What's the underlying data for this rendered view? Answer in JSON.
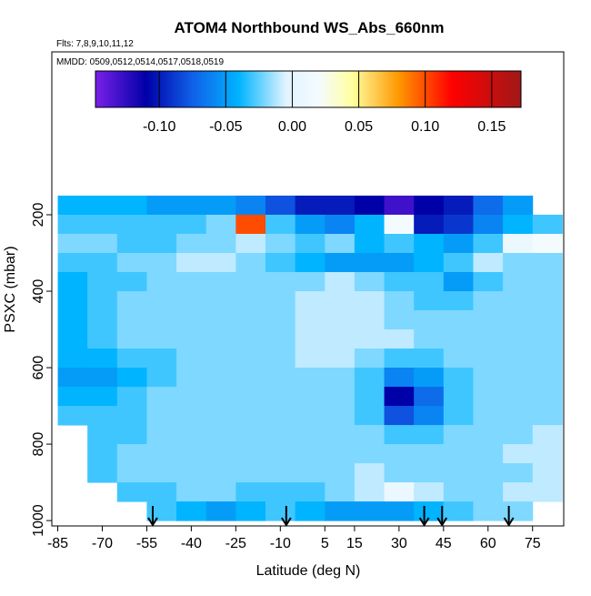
{
  "chart_data": {
    "type": "heatmap",
    "title": "ATOM4 Northbound WS_Abs_660nm",
    "subtitle": "Flts: 7,8,9,10,11,12",
    "annotation": "MMDD: 0509,0512,0514,0517,0518,0519",
    "x_label": "Latitude (deg N)",
    "y_label": "PSXC (mbar)",
    "xlim": [
      -87,
      85.5
    ],
    "ylim": [
      1014,
      -226
    ],
    "xticks": [
      -85,
      -70,
      -55,
      -40,
      -25,
      -10,
      5,
      15,
      30,
      45,
      60,
      75
    ],
    "yticks": [
      200,
      400,
      600,
      800,
      1000
    ],
    "x_edges": [
      -85,
      -75,
      -65,
      -55,
      -45,
      -35,
      -25,
      -15,
      -5,
      5,
      15,
      25,
      35,
      45,
      55,
      65,
      75,
      85
    ],
    "y_edges": [
      150,
      200,
      250,
      300,
      350,
      400,
      450,
      500,
      550,
      600,
      650,
      700,
      750,
      800,
      850,
      900,
      950,
      1000
    ],
    "values": [
      [
        -0.04,
        -0.04,
        -0.04,
        -0.05,
        -0.05,
        -0.05,
        -0.06,
        -0.08,
        -0.1,
        -0.1,
        -0.11,
        -0.13,
        -0.11,
        -0.1,
        -0.07,
        -0.05,
        null
      ],
      [
        -0.03,
        -0.03,
        -0.03,
        -0.03,
        -0.03,
        -0.02,
        0.1,
        -0.03,
        -0.05,
        -0.06,
        -0.04,
        0.02,
        -0.1,
        -0.09,
        -0.06,
        -0.04,
        -0.03
      ],
      [
        -0.02,
        -0.02,
        -0.03,
        -0.03,
        -0.02,
        -0.02,
        -0.01,
        -0.02,
        -0.03,
        -0.02,
        -0.04,
        -0.03,
        -0.04,
        -0.05,
        -0.03,
        0.01,
        0.02
      ],
      [
        -0.03,
        -0.03,
        -0.02,
        -0.02,
        -0.01,
        -0.01,
        -0.02,
        -0.03,
        -0.04,
        -0.05,
        -0.05,
        -0.05,
        -0.04,
        -0.03,
        -0.01,
        -0.02,
        -0.02
      ],
      [
        -0.04,
        -0.03,
        -0.03,
        -0.02,
        -0.02,
        -0.02,
        -0.02,
        -0.02,
        -0.02,
        -0.01,
        -0.02,
        -0.03,
        -0.03,
        -0.05,
        -0.03,
        -0.02,
        -0.02
      ],
      [
        -0.04,
        -0.03,
        -0.02,
        -0.02,
        -0.02,
        -0.02,
        -0.02,
        -0.02,
        -0.01,
        -0.01,
        -0.01,
        -0.02,
        -0.03,
        -0.03,
        -0.02,
        -0.02,
        -0.02
      ],
      [
        -0.04,
        -0.03,
        -0.02,
        -0.02,
        -0.02,
        -0.02,
        -0.02,
        -0.02,
        -0.01,
        -0.01,
        -0.01,
        -0.02,
        -0.02,
        -0.02,
        -0.02,
        -0.02,
        -0.02
      ],
      [
        -0.04,
        -0.03,
        -0.02,
        -0.02,
        -0.02,
        -0.02,
        -0.02,
        -0.02,
        -0.01,
        -0.01,
        -0.01,
        -0.01,
        -0.02,
        -0.02,
        -0.02,
        -0.02,
        -0.02
      ],
      [
        -0.04,
        -0.04,
        -0.03,
        -0.03,
        -0.02,
        -0.02,
        -0.02,
        -0.02,
        -0.01,
        -0.01,
        -0.02,
        -0.03,
        -0.03,
        -0.02,
        -0.02,
        -0.02,
        -0.02
      ],
      [
        -0.05,
        -0.05,
        -0.04,
        -0.03,
        -0.02,
        -0.02,
        -0.02,
        -0.02,
        -0.02,
        -0.02,
        -0.03,
        -0.06,
        -0.05,
        -0.03,
        -0.02,
        -0.02,
        -0.02
      ],
      [
        -0.04,
        -0.04,
        -0.03,
        -0.02,
        -0.02,
        -0.02,
        -0.02,
        -0.02,
        -0.02,
        -0.02,
        -0.03,
        -0.11,
        -0.07,
        -0.03,
        -0.02,
        -0.02,
        -0.02
      ],
      [
        -0.03,
        -0.03,
        -0.03,
        -0.02,
        -0.02,
        -0.02,
        -0.02,
        -0.02,
        -0.02,
        -0.02,
        -0.03,
        -0.08,
        -0.06,
        -0.03,
        -0.02,
        -0.02,
        -0.02
      ],
      [
        null,
        -0.03,
        -0.03,
        -0.02,
        -0.02,
        -0.02,
        -0.02,
        -0.02,
        -0.02,
        -0.02,
        -0.02,
        -0.03,
        -0.03,
        -0.02,
        -0.02,
        -0.02,
        -0.01
      ],
      [
        null,
        -0.03,
        -0.02,
        -0.02,
        -0.02,
        -0.02,
        -0.02,
        -0.02,
        -0.02,
        -0.02,
        -0.02,
        -0.02,
        -0.02,
        -0.02,
        -0.02,
        -0.01,
        -0.01
      ],
      [
        null,
        -0.03,
        -0.02,
        -0.02,
        -0.02,
        -0.02,
        -0.02,
        -0.02,
        -0.02,
        -0.02,
        -0.01,
        -0.02,
        -0.02,
        -0.02,
        -0.02,
        -0.02,
        -0.01
      ],
      [
        null,
        null,
        -0.03,
        -0.03,
        -0.02,
        -0.02,
        -0.03,
        -0.03,
        -0.03,
        -0.02,
        -0.01,
        0.01,
        -0.01,
        -0.02,
        -0.02,
        -0.01,
        -0.01
      ],
      [
        null,
        null,
        null,
        -0.03,
        -0.04,
        -0.05,
        -0.04,
        -0.03,
        -0.04,
        -0.05,
        -0.05,
        -0.05,
        -0.04,
        -0.03,
        -0.02,
        -0.02,
        null
      ]
    ],
    "arrows_x": [
      -53,
      -8,
      38.5,
      44.5,
      67
    ],
    "colorbar_lim": [
      -0.148,
      0.172
    ],
    "colorbar_ticks": [
      {
        "value": -0.1,
        "label": "-0.10"
      },
      {
        "value": -0.05,
        "label": "-0.05"
      },
      {
        "value": 0,
        "label": "0.00"
      },
      {
        "value": 0.05,
        "label": "0.05"
      },
      {
        "value": 0.1,
        "label": "0.10"
      },
      {
        "value": 0.15,
        "label": "0.15"
      }
    ],
    "colorscale": [
      [
        -0.148,
        "#7a20e8"
      ],
      [
        -0.11,
        "#0000a8"
      ],
      [
        -0.075,
        "#1060e8"
      ],
      [
        -0.04,
        "#00b4ff"
      ],
      [
        -0.005,
        "#dff3ff"
      ],
      [
        0.02,
        "#f4fbff"
      ],
      [
        0.045,
        "#ffffa0"
      ],
      [
        0.08,
        "#ff9800"
      ],
      [
        0.12,
        "#ff0000"
      ],
      [
        0.172,
        "#a01818"
      ]
    ]
  }
}
